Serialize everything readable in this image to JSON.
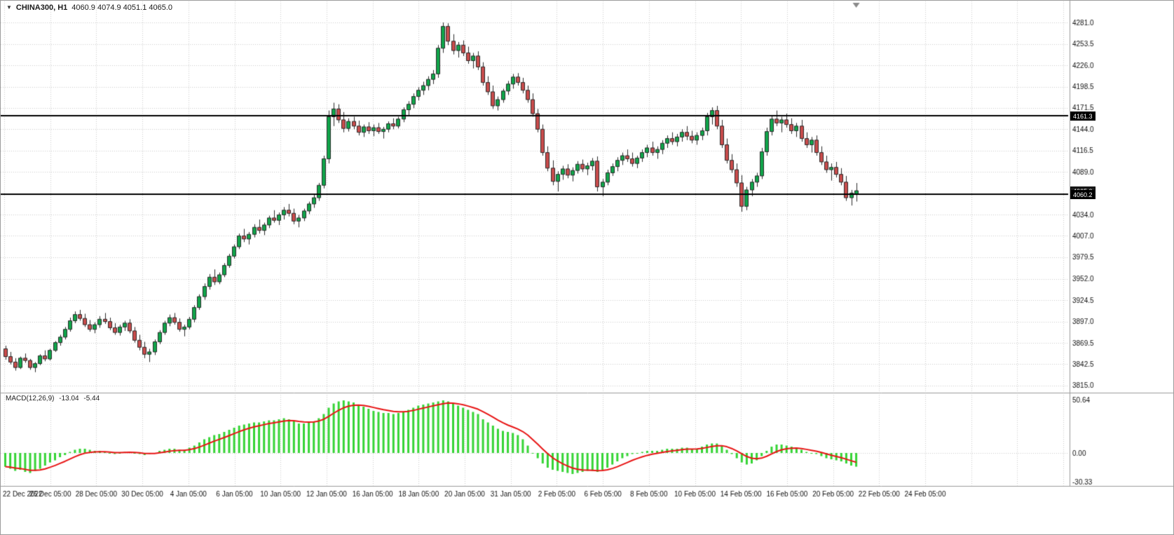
{
  "header": {
    "symbol_title": "CHINA300, H1",
    "ohlc_values": "4060.9 4074.9 4051.1 4065.0"
  },
  "icons": {
    "symbol_dropdown_glyph": "▼"
  },
  "tags": {
    "hline_upper": "4161.3",
    "bid": "4065.0",
    "hline_lower": "4060.2"
  },
  "indicator": {
    "title": "MACD(12,26,9)",
    "main_value": "-13.04",
    "signal_value": "-5.44"
  },
  "colors": {
    "up": "#10a54a",
    "down": "#c94c4c",
    "wick": "#2a2a2a",
    "hist": "#35d435",
    "signal": "#e81414",
    "grid": "#cdcdcd",
    "separator": "#9c9c9c",
    "text": "#121212",
    "hline": "#000000",
    "tag_bg": "#000000",
    "tag_fg": "#ffffff",
    "background": "#ffffff"
  },
  "chart_data": {
    "type": "candlestick",
    "title": "CHINA300, H1",
    "symbol": "CHINA300",
    "timeframe": "H1",
    "last_ohlc": [
      4060.9,
      4074.9,
      4051.1,
      4065.0
    ],
    "price_range": [
      3807.5,
      4286.5
    ],
    "hlines": [
      4161.3,
      4060.2
    ],
    "bid": 4065.0,
    "grid": "dotted",
    "price_ticks": [
      "4281.0",
      "4253.5",
      "4226.0",
      "4198.5",
      "4171.5",
      "4144.0",
      "4116.5",
      "4089.0",
      "4061.5",
      "4034.0",
      "4007.0",
      "3979.5",
      "3952.0",
      "3924.5",
      "3897.0",
      "3869.5",
      "3842.5",
      "3815.0"
    ],
    "time_ticks": [
      "22 Dec 2022",
      "26 Dec 05:00",
      "28 Dec 05:00",
      "30 Dec 05:00",
      "4 Jan 05:00",
      "6 Jan 05:00",
      "10 Jan 05:00",
      "12 Jan 05:00",
      "16 Jan 05:00",
      "18 Jan 05:00",
      "20 Jan 05:00",
      "31 Jan 05:00",
      "2 Feb 05:00",
      "6 Feb 05:00",
      "8 Feb 05:00",
      "10 Feb 05:00",
      "14 Feb 05:00",
      "16 Feb 05:00",
      "20 Feb 05:00",
      "22 Feb 05:00",
      "24 Feb 05:00"
    ],
    "candles_ohlc": [
      [
        3862,
        3866,
        3848,
        3852
      ],
      [
        3852,
        3858,
        3842,
        3845
      ],
      [
        3845,
        3850,
        3834,
        3838
      ],
      [
        3838,
        3852,
        3836,
        3850
      ],
      [
        3850,
        3856,
        3844,
        3847
      ],
      [
        3847,
        3849,
        3835,
        3838
      ],
      [
        3838,
        3845,
        3832,
        3843
      ],
      [
        3843,
        3855,
        3841,
        3853
      ],
      [
        3853,
        3860,
        3846,
        3849
      ],
      [
        3849,
        3862,
        3847,
        3860
      ],
      [
        3860,
        3872,
        3858,
        3870
      ],
      [
        3870,
        3880,
        3866,
        3877
      ],
      [
        3877,
        3890,
        3874,
        3887
      ],
      [
        3887,
        3902,
        3884,
        3898
      ],
      [
        3898,
        3910,
        3895,
        3906
      ],
      [
        3906,
        3912,
        3898,
        3901
      ],
      [
        3901,
        3907,
        3890,
        3893
      ],
      [
        3893,
        3899,
        3884,
        3887
      ],
      [
        3887,
        3896,
        3882,
        3893
      ],
      [
        3893,
        3904,
        3889,
        3900
      ],
      [
        3900,
        3908,
        3894,
        3897
      ],
      [
        3897,
        3902,
        3886,
        3889
      ],
      [
        3889,
        3895,
        3880,
        3883
      ],
      [
        3883,
        3893,
        3879,
        3890
      ],
      [
        3890,
        3898,
        3885,
        3895
      ],
      [
        3895,
        3900,
        3882,
        3885
      ],
      [
        3885,
        3890,
        3870,
        3873
      ],
      [
        3873,
        3880,
        3860,
        3864
      ],
      [
        3864,
        3871,
        3850,
        3855
      ],
      [
        3855,
        3862,
        3845,
        3858
      ],
      [
        3858,
        3874,
        3854,
        3871
      ],
      [
        3871,
        3886,
        3868,
        3883
      ],
      [
        3883,
        3898,
        3880,
        3895
      ],
      [
        3895,
        3906,
        3891,
        3902
      ],
      [
        3902,
        3908,
        3893,
        3896
      ],
      [
        3896,
        3901,
        3884,
        3887
      ],
      [
        3887,
        3893,
        3878,
        3890
      ],
      [
        3890,
        3903,
        3887,
        3900
      ],
      [
        3900,
        3918,
        3896,
        3915
      ],
      [
        3915,
        3932,
        3912,
        3929
      ],
      [
        3929,
        3946,
        3925,
        3942
      ],
      [
        3942,
        3958,
        3938,
        3954
      ],
      [
        3954,
        3964,
        3944,
        3948
      ],
      [
        3948,
        3960,
        3945,
        3957
      ],
      [
        3957,
        3972,
        3954,
        3969
      ],
      [
        3969,
        3984,
        3966,
        3981
      ],
      [
        3981,
        3996,
        3978,
        3993
      ],
      [
        3993,
        4010,
        3990,
        4007
      ],
      [
        4007,
        4016,
        3999,
        4003
      ],
      [
        4003,
        4012,
        3996,
        4009
      ],
      [
        4009,
        4022,
        4005,
        4018
      ],
      [
        4018,
        4028,
        4010,
        4014
      ],
      [
        4014,
        4024,
        4008,
        4021
      ],
      [
        4021,
        4033,
        4017,
        4030
      ],
      [
        4030,
        4040,
        4024,
        4027
      ],
      [
        4027,
        4037,
        4021,
        4034
      ],
      [
        4034,
        4044,
        4028,
        4040
      ],
      [
        4040,
        4048,
        4032,
        4036
      ],
      [
        4036,
        4042,
        4022,
        4026
      ],
      [
        4026,
        4034,
        4018,
        4030
      ],
      [
        4030,
        4042,
        4026,
        4039
      ],
      [
        4039,
        4051,
        4035,
        4048
      ],
      [
        4048,
        4060,
        4043,
        4056
      ],
      [
        4056,
        4075,
        4052,
        4072
      ],
      [
        4072,
        4110,
        4068,
        4106
      ],
      [
        4106,
        4168,
        4100,
        4160
      ],
      [
        4160,
        4178,
        4148,
        4170
      ],
      [
        4170,
        4176,
        4152,
        4156
      ],
      [
        4156,
        4166,
        4140,
        4145
      ],
      [
        4145,
        4158,
        4141,
        4154
      ],
      [
        4154,
        4160,
        4144,
        4148
      ],
      [
        4148,
        4155,
        4136,
        4140
      ],
      [
        4140,
        4150,
        4134,
        4147
      ],
      [
        4147,
        4153,
        4138,
        4142
      ],
      [
        4142,
        4150,
        4135,
        4146
      ],
      [
        4146,
        4152,
        4138,
        4141
      ],
      [
        4141,
        4147,
        4132,
        4144
      ],
      [
        4144,
        4154,
        4140,
        4151
      ],
      [
        4151,
        4158,
        4144,
        4148
      ],
      [
        4148,
        4160,
        4145,
        4157
      ],
      [
        4157,
        4172,
        4153,
        4169
      ],
      [
        4169,
        4180,
        4162,
        4176
      ],
      [
        4176,
        4190,
        4171,
        4186
      ],
      [
        4186,
        4198,
        4181,
        4194
      ],
      [
        4194,
        4205,
        4188,
        4200
      ],
      [
        4200,
        4212,
        4194,
        4208
      ],
      [
        4208,
        4220,
        4202,
        4215
      ],
      [
        4215,
        4252,
        4210,
        4248
      ],
      [
        4248,
        4281,
        4242,
        4276
      ],
      [
        4276,
        4280,
        4252,
        4257
      ],
      [
        4257,
        4266,
        4240,
        4245
      ],
      [
        4245,
        4256,
        4236,
        4252
      ],
      [
        4252,
        4258,
        4238,
        4242
      ],
      [
        4242,
        4250,
        4228,
        4232
      ],
      [
        4232,
        4242,
        4222,
        4238
      ],
      [
        4238,
        4244,
        4220,
        4224
      ],
      [
        4224,
        4230,
        4200,
        4204
      ],
      [
        4204,
        4212,
        4188,
        4192
      ],
      [
        4192,
        4200,
        4170,
        4174
      ],
      [
        4174,
        4186,
        4168,
        4182
      ],
      [
        4182,
        4196,
        4178,
        4193
      ],
      [
        4193,
        4206,
        4188,
        4202
      ],
      [
        4202,
        4215,
        4196,
        4211
      ],
      [
        4211,
        4216,
        4200,
        4204
      ],
      [
        4204,
        4210,
        4190,
        4194
      ],
      [
        4194,
        4200,
        4178,
        4182
      ],
      [
        4182,
        4190,
        4160,
        4164
      ],
      [
        4164,
        4170,
        4140,
        4144
      ],
      [
        4144,
        4150,
        4110,
        4114
      ],
      [
        4114,
        4122,
        4090,
        4094
      ],
      [
        4094,
        4104,
        4072,
        4077
      ],
      [
        4077,
        4090,
        4064,
        4086
      ],
      [
        4086,
        4097,
        4079,
        4093
      ],
      [
        4093,
        4099,
        4081,
        4085
      ],
      [
        4085,
        4095,
        4077,
        4091
      ],
      [
        4091,
        4103,
        4087,
        4099
      ],
      [
        4099,
        4105,
        4089,
        4093
      ],
      [
        4093,
        4101,
        4085,
        4097
      ],
      [
        4097,
        4107,
        4091,
        4103
      ],
      [
        4103,
        4109,
        4064,
        4070
      ],
      [
        4070,
        4080,
        4058,
        4076
      ],
      [
        4076,
        4092,
        4072,
        4088
      ],
      [
        4088,
        4100,
        4084,
        4096
      ],
      [
        4096,
        4108,
        4090,
        4104
      ],
      [
        4104,
        4114,
        4098,
        4110
      ],
      [
        4110,
        4118,
        4102,
        4106
      ],
      [
        4106,
        4114,
        4096,
        4100
      ],
      [
        4100,
        4110,
        4094,
        4107
      ],
      [
        4107,
        4118,
        4102,
        4114
      ],
      [
        4114,
        4124,
        4108,
        4120
      ],
      [
        4120,
        4128,
        4110,
        4114
      ],
      [
        4114,
        4122,
        4106,
        4118
      ],
      [
        4118,
        4130,
        4112,
        4126
      ],
      [
        4126,
        4136,
        4120,
        4132
      ],
      [
        4132,
        4140,
        4124,
        4128
      ],
      [
        4128,
        4138,
        4122,
        4134
      ],
      [
        4134,
        4144,
        4128,
        4140
      ],
      [
        4140,
        4148,
        4130,
        4135
      ],
      [
        4135,
        4142,
        4126,
        4130
      ],
      [
        4130,
        4140,
        4124,
        4136
      ],
      [
        4136,
        4146,
        4130,
        4142
      ],
      [
        4142,
        4165,
        4136,
        4160
      ],
      [
        4160,
        4172,
        4150,
        4168
      ],
      [
        4168,
        4174,
        4144,
        4148
      ],
      [
        4148,
        4156,
        4120,
        4124
      ],
      [
        4124,
        4132,
        4100,
        4104
      ],
      [
        4104,
        4112,
        4088,
        4092
      ],
      [
        4092,
        4100,
        4070,
        4075
      ],
      [
        4075,
        4085,
        4038,
        4045
      ],
      [
        4045,
        4070,
        4040,
        4066
      ],
      [
        4066,
        4080,
        4058,
        4076
      ],
      [
        4076,
        4088,
        4070,
        4084
      ],
      [
        4084,
        4120,
        4080,
        4115
      ],
      [
        4115,
        4146,
        4110,
        4141
      ],
      [
        4141,
        4162,
        4136,
        4157
      ],
      [
        4157,
        4168,
        4148,
        4152
      ],
      [
        4152,
        4160,
        4140,
        4156
      ],
      [
        4156,
        4164,
        4146,
        4150
      ],
      [
        4150,
        4158,
        4138,
        4142
      ],
      [
        4142,
        4152,
        4134,
        4148
      ],
      [
        4148,
        4156,
        4128,
        4132
      ],
      [
        4132,
        4140,
        4120,
        4124
      ],
      [
        4124,
        4134,
        4114,
        4130
      ],
      [
        4130,
        4136,
        4110,
        4114
      ],
      [
        4114,
        4122,
        4098,
        4102
      ],
      [
        4102,
        4110,
        4088,
        4092
      ],
      [
        4092,
        4100,
        4078,
        4095
      ],
      [
        4095,
        4102,
        4082,
        4086
      ],
      [
        4086,
        4094,
        4072,
        4076
      ],
      [
        4076,
        4084,
        4052,
        4056
      ],
      [
        4056,
        4066,
        4046,
        4062
      ],
      [
        4060.9,
        4074.9,
        4051.1,
        4065.0
      ]
    ],
    "macd": {
      "type": "bar",
      "label": "MACD(12,26,9)",
      "main": -13.04,
      "signal": -5.44,
      "scale_ticks": [
        "50.64",
        "0.00",
        "-30.33"
      ],
      "range": [
        -30.33,
        50.64
      ],
      "histogram": [
        -13,
        -15,
        -17,
        -16,
        -18,
        -19,
        -17,
        -15,
        -12,
        -9,
        -7,
        -4,
        -2,
        1,
        3,
        4,
        4,
        3,
        2,
        2,
        1,
        0,
        -1,
        0,
        1,
        1,
        0,
        -1,
        -2,
        -1,
        0,
        2,
        3,
        4,
        4,
        3,
        3,
        5,
        7,
        10,
        13,
        15,
        17,
        18,
        20,
        22,
        24,
        26,
        27,
        28,
        29,
        29,
        30,
        31,
        31,
        32,
        33,
        32,
        30,
        28,
        28,
        29,
        30,
        33,
        37,
        43,
        47,
        49,
        50,
        49,
        48,
        46,
        44,
        42,
        40,
        39,
        38,
        38,
        37,
        38,
        39,
        41,
        43,
        45,
        46,
        47,
        48,
        49,
        50,
        49,
        47,
        45,
        43,
        41,
        39,
        37,
        32,
        29,
        26,
        23,
        21,
        20,
        19,
        17,
        13,
        7,
        0,
        -5,
        -10,
        -14,
        -16,
        -17,
        -18,
        -19,
        -20,
        -19,
        -18,
        -17,
        -17,
        -18,
        -16,
        -14,
        -11,
        -8,
        -5,
        -3,
        -1,
        0,
        1,
        2,
        2,
        2,
        3,
        4,
        4,
        4,
        5,
        5,
        4,
        4,
        6,
        8,
        9,
        9,
        7,
        3,
        -1,
        -5,
        -9,
        -11,
        -10,
        -7,
        -3,
        2,
        6,
        8,
        8,
        7,
        6,
        5,
        3,
        1,
        0,
        -1,
        -3,
        -5,
        -6,
        -7,
        -8,
        -10,
        -12,
        -13.04
      ]
    }
  }
}
